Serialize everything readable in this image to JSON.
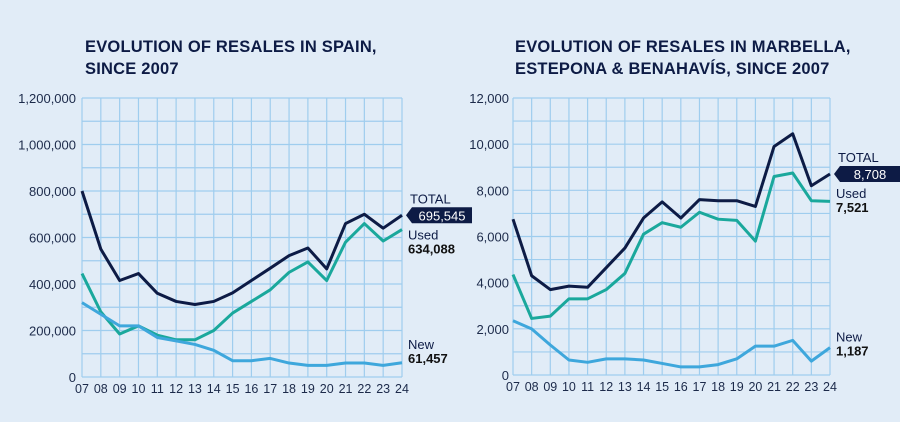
{
  "colors": {
    "background": "#e1ecf7",
    "grid": "#9fcdee",
    "total": "#0d1b45",
    "used": "#1aa89c",
    "new": "#3ea7dc"
  },
  "chart_data": [
    {
      "type": "line",
      "title": "EVOLUTION OF RESALES IN SPAIN, SINCE 2007",
      "title_lines": [
        "EVOLUTION OF RESALES IN SPAIN,",
        "SINCE 2007"
      ],
      "categories": [
        "07",
        "08",
        "09",
        "10",
        "11",
        "12",
        "13",
        "14",
        "15",
        "16",
        "17",
        "18",
        "19",
        "20",
        "21",
        "22",
        "23",
        "24"
      ],
      "ylim": [
        0,
        1200000
      ],
      "yticks": [
        0,
        200000,
        400000,
        600000,
        800000,
        1000000,
        1200000
      ],
      "ytick_labels": [
        "0",
        "200,000",
        "400,000",
        "600,000",
        "800,000",
        "1,000,000",
        "1,200,000"
      ],
      "grid": true,
      "series": [
        {
          "name": "TOTAL",
          "label": "695,545",
          "values": [
            800000,
            550000,
            415000,
            445000,
            360000,
            325000,
            312000,
            325000,
            362000,
            415000,
            468000,
            522000,
            555000,
            465000,
            660000,
            700000,
            640000,
            695545
          ]
        },
        {
          "name": "Used",
          "label": "634,088",
          "values": [
            445000,
            280000,
            185000,
            220000,
            180000,
            160000,
            160000,
            200000,
            275000,
            325000,
            375000,
            450000,
            495000,
            415000,
            580000,
            660000,
            585000,
            634088
          ]
        },
        {
          "name": "New",
          "label": "61,457",
          "values": [
            320000,
            270000,
            220000,
            220000,
            170000,
            155000,
            140000,
            115000,
            70000,
            70000,
            80000,
            60000,
            50000,
            50000,
            60000,
            60000,
            50000,
            61457
          ]
        }
      ]
    },
    {
      "type": "line",
      "title": "EVOLUTION OF RESALES IN MARBELLA, ESTEPONA & BENAHAVÍS, SINCE 2007",
      "title_lines": [
        "EVOLUTION OF RESALES IN MARBELLA,",
        "ESTEPONA & BENAHAVÍS, SINCE 2007"
      ],
      "categories": [
        "07",
        "08",
        "09",
        "10",
        "11",
        "12",
        "13",
        "14",
        "15",
        "16",
        "17",
        "18",
        "19",
        "20",
        "21",
        "22",
        "23",
        "24"
      ],
      "ylim": [
        0,
        12000
      ],
      "yticks": [
        0,
        2000,
        4000,
        6000,
        8000,
        10000,
        12000
      ],
      "ytick_labels": [
        "0",
        "2,000",
        "4,000",
        "6,000",
        "8,000",
        "10,000",
        "12,000"
      ],
      "grid": true,
      "series": [
        {
          "name": "TOTAL",
          "label": "8,708",
          "values": [
            6750,
            4300,
            3700,
            3850,
            3800,
            4650,
            5500,
            6800,
            7500,
            6800,
            7600,
            7550,
            7550,
            7300,
            9900,
            10450,
            8200,
            8708
          ]
        },
        {
          "name": "Used",
          "label": "7,521",
          "values": [
            4350,
            2450,
            2550,
            3300,
            3300,
            3700,
            4400,
            6100,
            6600,
            6400,
            7050,
            6750,
            6700,
            5800,
            8600,
            8750,
            7550,
            7521
          ]
        },
        {
          "name": "New",
          "label": "1,187",
          "values": [
            2350,
            2000,
            1300,
            650,
            550,
            700,
            700,
            650,
            500,
            350,
            350,
            450,
            700,
            1250,
            1250,
            1500,
            600,
            1187
          ]
        }
      ]
    }
  ]
}
